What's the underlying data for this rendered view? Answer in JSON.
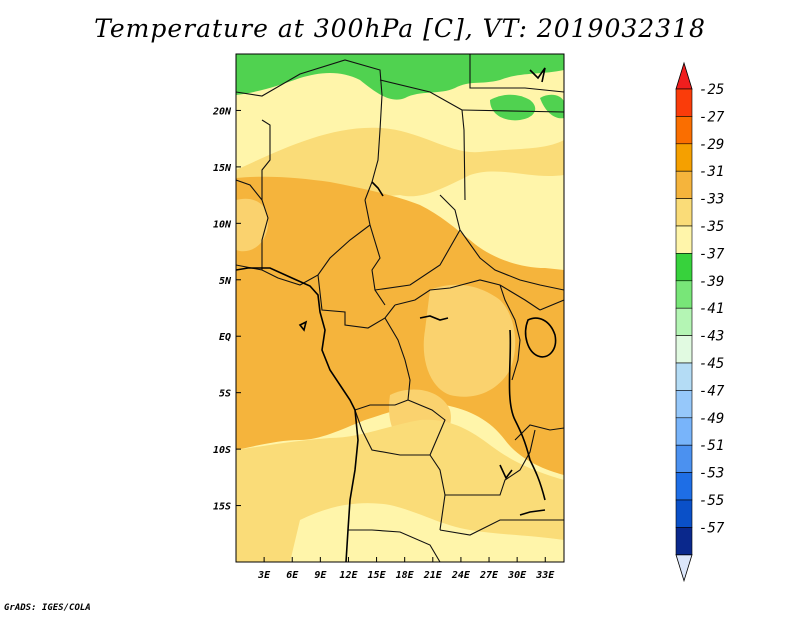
{
  "title": "Temperature at 300hPa [C], VT: 2019032318",
  "credit": "GrADS: IGES/COLA",
  "map": {
    "lon_range": [
      0,
      35
    ],
    "lat_range": [
      -20,
      25
    ],
    "lon_ticks": [
      {
        "value": 3,
        "label": "3E"
      },
      {
        "value": 6,
        "label": "6E"
      },
      {
        "value": 9,
        "label": "9E"
      },
      {
        "value": 12,
        "label": "12E"
      },
      {
        "value": 15,
        "label": "15E"
      },
      {
        "value": 18,
        "label": "18E"
      },
      {
        "value": 21,
        "label": "21E"
      },
      {
        "value": 24,
        "label": "24E"
      },
      {
        "value": 27,
        "label": "27E"
      },
      {
        "value": 30,
        "label": "30E"
      },
      {
        "value": 33,
        "label": "33E"
      }
    ],
    "lat_ticks": [
      {
        "value": 20,
        "label": "20N"
      },
      {
        "value": 15,
        "label": "15N"
      },
      {
        "value": 10,
        "label": "10N"
      },
      {
        "value": 5,
        "label": "5N"
      },
      {
        "value": 0,
        "label": "EQ"
      },
      {
        "value": -5,
        "label": "5S"
      },
      {
        "value": -10,
        "label": "10S"
      },
      {
        "value": -15,
        "label": "15S"
      }
    ]
  },
  "colorbar": {
    "levels": [
      {
        "label": "-25",
        "color": "#fa3c0a"
      },
      {
        "label": "-27",
        "color": "#fa6e00"
      },
      {
        "label": "-29",
        "color": "#f5a000"
      },
      {
        "label": "-31",
        "color": "#f5b43c"
      },
      {
        "label": "-33",
        "color": "#fadc78"
      },
      {
        "label": "-35",
        "color": "#fff5aa"
      },
      {
        "label": "-37",
        "color": "#37d23c"
      },
      {
        "label": "-39",
        "color": "#78e678"
      },
      {
        "label": "-41",
        "color": "#b4f5b4"
      },
      {
        "label": "-43",
        "color": "#e1fae1"
      },
      {
        "label": "-45",
        "color": "#b4dcf5"
      },
      {
        "label": "-47",
        "color": "#96c8fa"
      },
      {
        "label": "-49",
        "color": "#78b4fa"
      },
      {
        "label": "-51",
        "color": "#4b91f0"
      },
      {
        "label": "-53",
        "color": "#1e6ee6"
      },
      {
        "label": "-55",
        "color": "#0a50c8"
      },
      {
        "label": "-57",
        "color": "#0a288c"
      }
    ],
    "top_color": "#f01e1e",
    "bottom_color": "#dce6fa"
  },
  "field_colors": {
    "c29": "#f5b43c",
    "c31": "#fad26e",
    "c33": "#fadc78",
    "c35": "#fff5aa",
    "c37": "#50d250"
  }
}
